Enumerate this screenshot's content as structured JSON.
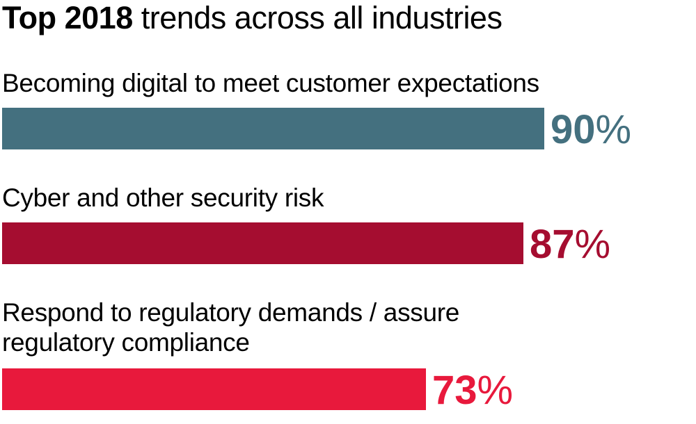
{
  "chart_data": {
    "type": "bar",
    "orientation": "horizontal",
    "title_bold": "Top 2018",
    "title_rest": " trends across all industries",
    "categories": [
      "Becoming digital to meet customer expectations",
      "Cyber and other security risk",
      "Respond to regulatory demands / assure regulatory compliance"
    ],
    "values": [
      90,
      87,
      73
    ],
    "value_labels": [
      "90",
      "87",
      "73"
    ],
    "unit": "%",
    "colors": [
      "#44707f",
      "#a50d30",
      "#e8193c"
    ],
    "xlabel": "",
    "ylabel": "",
    "grid": false
  }
}
